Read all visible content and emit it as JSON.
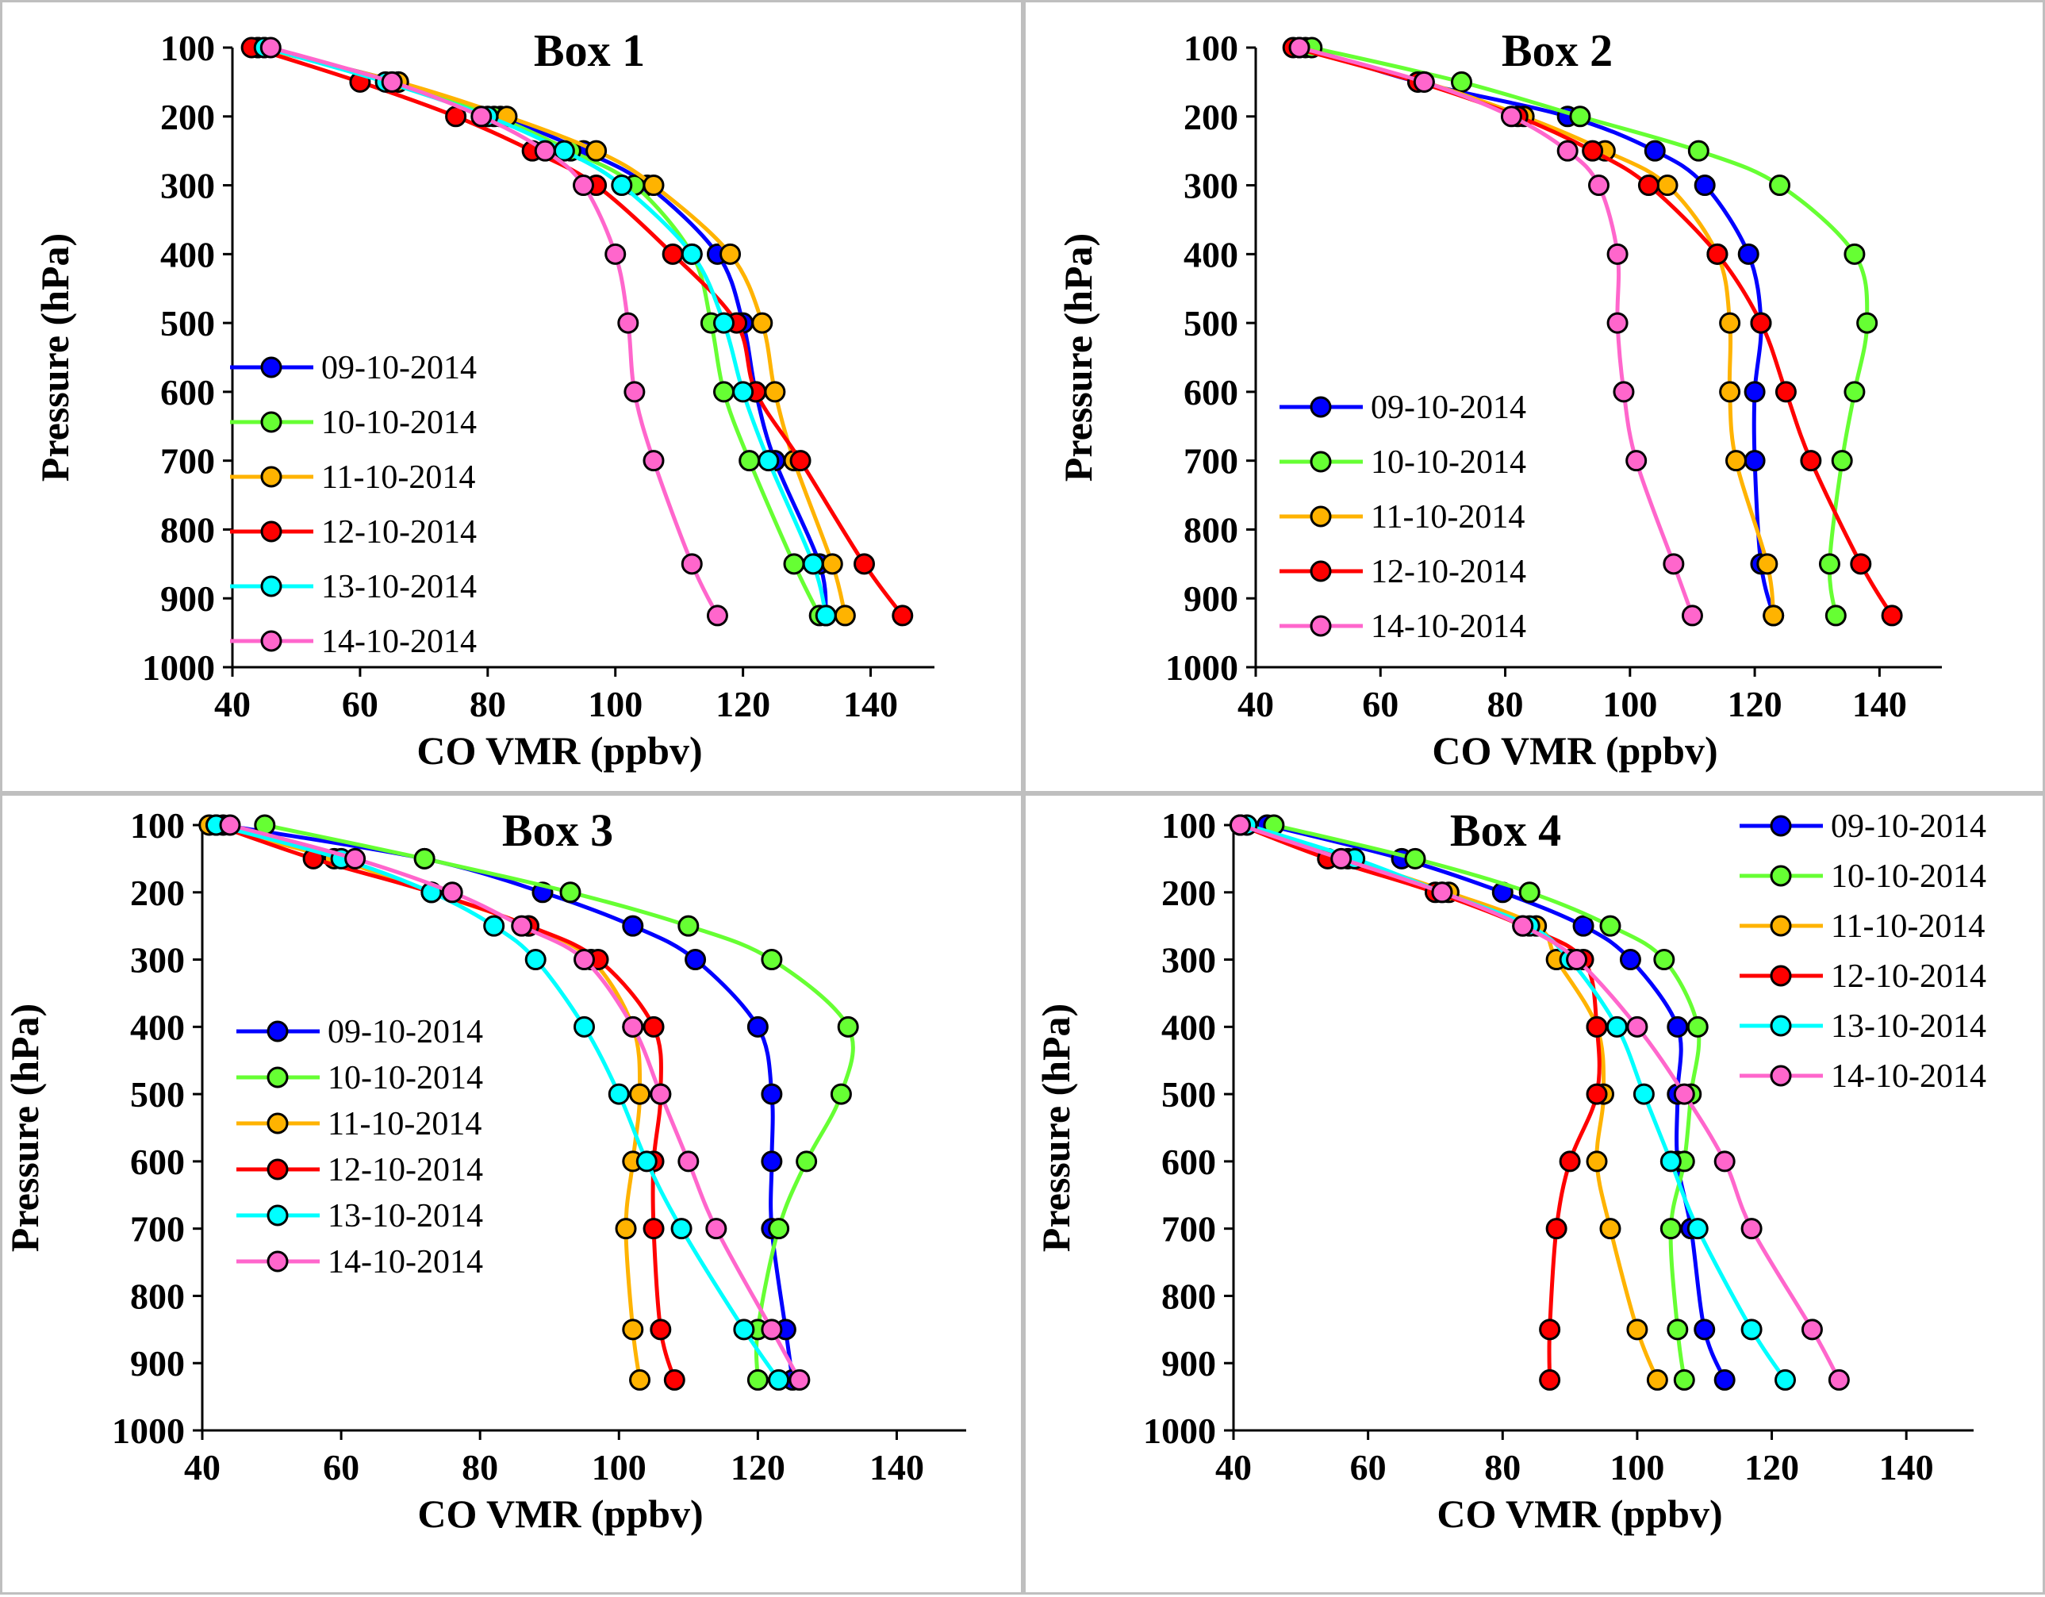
{
  "figure": {
    "colors": {
      "09-10-2014": "#0000ff",
      "10-10-2014": "#66ff33",
      "11-10-2014": "#ffb300",
      "12-10-2014": "#ff0000",
      "13-10-2014": "#00ffff",
      "14-10-2014": "#ff66cc"
    }
  },
  "chart_data": [
    {
      "type": "line",
      "title": "Box 1",
      "xlabel": "CO VMR (ppbv)",
      "ylabel": "Pressure (hPa)",
      "xlim": [
        40,
        150
      ],
      "ylim": [
        100,
        1000
      ],
      "y_inverted": true,
      "x_ticks": [
        40,
        60,
        80,
        100,
        120,
        140
      ],
      "y_ticks": [
        100,
        200,
        300,
        400,
        500,
        600,
        700,
        800,
        900,
        1000
      ],
      "legend": "left",
      "pressure": [
        100,
        150,
        200,
        250,
        300,
        400,
        500,
        600,
        700,
        850,
        925
      ],
      "series": [
        {
          "name": "09-10-2014",
          "values": [
            44,
            66,
            82,
            95,
            105,
            116,
            120,
            122,
            125,
            132,
            133
          ]
        },
        {
          "name": "10-10-2014",
          "values": [
            45,
            65,
            81,
            93,
            103,
            112,
            115,
            117,
            121,
            128,
            132
          ]
        },
        {
          "name": "11-10-2014",
          "values": [
            44,
            66,
            83,
            97,
            106,
            118,
            123,
            125,
            128,
            134,
            136
          ]
        },
        {
          "name": "12-10-2014",
          "values": [
            43,
            60,
            75,
            87,
            97,
            109,
            119,
            122,
            129,
            139,
            145
          ]
        },
        {
          "name": "13-10-2014",
          "values": [
            45,
            64,
            80,
            92,
            101,
            112,
            117,
            120,
            124,
            131,
            133
          ]
        },
        {
          "name": "14-10-2014",
          "values": [
            46,
            65,
            79,
            89,
            95,
            100,
            102,
            103,
            106,
            112,
            116
          ]
        }
      ]
    },
    {
      "type": "line",
      "title": "Box 2",
      "xlabel": "CO VMR (ppbv)",
      "ylabel": "Pressure (hPa)",
      "xlim": [
        40,
        150
      ],
      "ylim": [
        100,
        1000
      ],
      "y_inverted": true,
      "x_ticks": [
        40,
        60,
        80,
        100,
        120,
        140
      ],
      "y_ticks": [
        100,
        200,
        300,
        400,
        500,
        600,
        700,
        800,
        900,
        1000
      ],
      "legend": "left",
      "pressure": [
        100,
        150,
        200,
        250,
        300,
        400,
        500,
        600,
        700,
        850,
        925
      ],
      "series": [
        {
          "name": "09-10-2014",
          "values": [
            48,
            66,
            90,
            104,
            112,
            119,
            121,
            120,
            120,
            121,
            123
          ]
        },
        {
          "name": "10-10-2014",
          "values": [
            49,
            73,
            92,
            111,
            124,
            136,
            138,
            136,
            134,
            132,
            133
          ]
        },
        {
          "name": "11-10-2014",
          "values": [
            47,
            67,
            83,
            96,
            106,
            114,
            116,
            116,
            117,
            122,
            123
          ]
        },
        {
          "name": "12-10-2014",
          "values": [
            46,
            66,
            82,
            94,
            103,
            114,
            121,
            125,
            129,
            137,
            142
          ]
        },
        {
          "name": "14-10-2014",
          "values": [
            47,
            67,
            81,
            90,
            95,
            98,
            98,
            99,
            101,
            107,
            110
          ]
        }
      ]
    },
    {
      "type": "line",
      "title": "Box 3",
      "xlabel": "CO VMR (ppbv)",
      "ylabel": "Pressure (hPa)",
      "xlim": [
        40,
        150
      ],
      "ylim": [
        100,
        1000
      ],
      "y_inverted": true,
      "x_ticks": [
        40,
        60,
        80,
        100,
        120,
        140
      ],
      "y_ticks": [
        100,
        200,
        300,
        400,
        500,
        600,
        700,
        800,
        900,
        1000
      ],
      "legend": "left",
      "pressure": [
        100,
        150,
        200,
        250,
        300,
        400,
        500,
        600,
        700,
        850,
        925
      ],
      "series": [
        {
          "name": "09-10-2014",
          "values": [
            43,
            72,
            89,
            102,
            111,
            120,
            122,
            122,
            122,
            124,
            125
          ]
        },
        {
          "name": "10-10-2014",
          "values": [
            49,
            72,
            93,
            110,
            122,
            133,
            132,
            127,
            123,
            120,
            120
          ]
        },
        {
          "name": "11-10-2014",
          "values": [
            41,
            59,
            73,
            87,
            96,
            102,
            103,
            102,
            101,
            102,
            103
          ]
        },
        {
          "name": "12-10-2014",
          "values": [
            42,
            56,
            73,
            87,
            97,
            105,
            106,
            105,
            105,
            106,
            108
          ]
        },
        {
          "name": "13-10-2014",
          "values": [
            42,
            60,
            73,
            82,
            88,
            95,
            100,
            104,
            109,
            118,
            123
          ]
        },
        {
          "name": "14-10-2014",
          "values": [
            44,
            62,
            76,
            86,
            95,
            102,
            106,
            110,
            114,
            122,
            126
          ]
        }
      ]
    },
    {
      "type": "line",
      "title": "Box 4",
      "xlabel": "CO VMR (ppbv)",
      "ylabel": "Pressure (hPa)",
      "xlim": [
        40,
        150
      ],
      "ylim": [
        100,
        1000
      ],
      "y_inverted": true,
      "x_ticks": [
        40,
        60,
        80,
        100,
        120,
        140
      ],
      "y_ticks": [
        100,
        200,
        300,
        400,
        500,
        600,
        700,
        800,
        900,
        1000
      ],
      "legend": "top-right",
      "pressure": [
        100,
        150,
        200,
        250,
        300,
        400,
        500,
        600,
        700,
        850,
        925
      ],
      "series": [
        {
          "name": "09-10-2014",
          "values": [
            45,
            65,
            80,
            92,
            99,
            106,
            106,
            106,
            108,
            110,
            113
          ]
        },
        {
          "name": "10-10-2014",
          "values": [
            46,
            67,
            84,
            96,
            104,
            109,
            108,
            107,
            105,
            106,
            107
          ]
        },
        {
          "name": "11-10-2014",
          "values": [
            41,
            57,
            72,
            85,
            88,
            94,
            95,
            94,
            96,
            100,
            103
          ]
        },
        {
          "name": "12-10-2014",
          "values": [
            41,
            54,
            70,
            83,
            92,
            94,
            94,
            90,
            88,
            87,
            87
          ]
        },
        {
          "name": "13-10-2014",
          "values": [
            42,
            58,
            71,
            84,
            90,
            97,
            101,
            105,
            109,
            117,
            122
          ]
        },
        {
          "name": "14-10-2014",
          "values": [
            41,
            56,
            71,
            83,
            91,
            100,
            107,
            113,
            117,
            126,
            130
          ]
        }
      ]
    }
  ]
}
